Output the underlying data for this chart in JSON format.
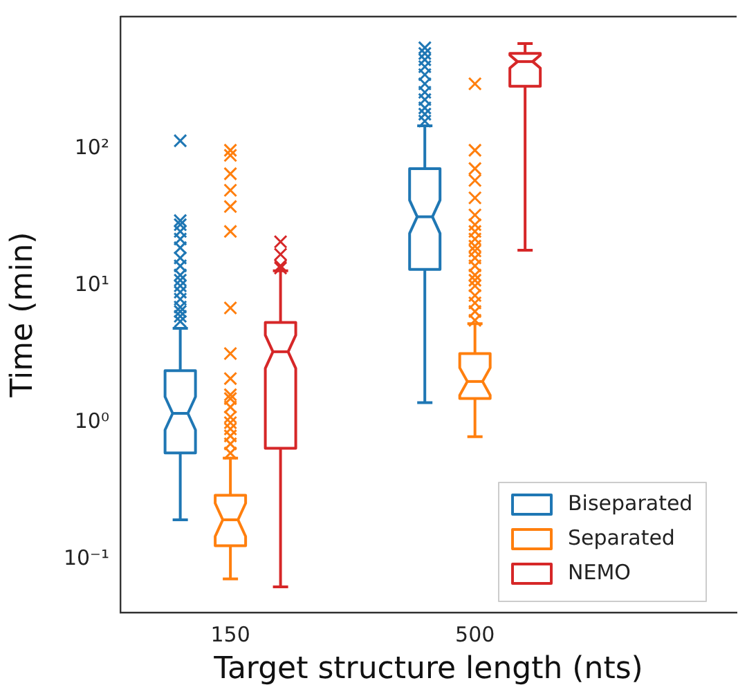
{
  "chart_data": {
    "type": "box",
    "xlabel": "Target structure length (nts)",
    "ylabel": "Time (min)",
    "categories": [
      "150",
      "500"
    ],
    "log": "y",
    "ylim": [
      0.041,
      930
    ],
    "yticks": [
      {
        "value": 0.1,
        "label": "10⁻¹"
      },
      {
        "value": 1,
        "label": "10⁰"
      },
      {
        "value": 10,
        "label": "10¹"
      },
      {
        "value": 100,
        "label": "10²"
      }
    ],
    "grid": false,
    "legend": "bottom right",
    "marker": "cross",
    "series": [
      {
        "name": "Biseparated",
        "color": "#1f77b4",
        "boxes": [
          {
            "low": 0.195,
            "q1": 0.6,
            "median": 1.17,
            "q3": 2.4,
            "high": 4.9,
            "outliers": [
              5.5,
              6,
              6.5,
              7,
              8,
              9,
              10,
              11,
              12,
              14,
              16,
              19,
              22,
              25,
              28,
              30,
              115
            ]
          },
          {
            "low": 1.4,
            "q1": 13.2,
            "median": 32,
            "q3": 72,
            "high": 148,
            "outliers": [
              160,
              180,
              200,
              230,
              260,
              300,
              350,
              400,
              450,
              500,
              550
            ]
          }
        ]
      },
      {
        "name": "Separated",
        "color": "#ff7f0e",
        "boxes": [
          {
            "low": 0.072,
            "q1": 0.126,
            "median": 0.195,
            "q3": 0.295,
            "high": 0.55,
            "outliers": [
              0.6,
              0.7,
              0.8,
              0.9,
              1,
              1.1,
              1.3,
              1.5,
              1.6,
              2.1,
              3.2,
              6.9,
              25,
              38,
              50,
              66,
              90,
              98
            ]
          },
          {
            "low": 0.79,
            "q1": 1.5,
            "median": 2,
            "q3": 3.2,
            "high": 5.3,
            "outliers": [
              5.6,
              6.5,
              7.5,
              8.5,
              10,
              11,
              12,
              14,
              16,
              18,
              19.5,
              22,
              25,
              28,
              33,
              44,
              59,
              72,
              98,
              300
            ]
          }
        ]
      },
      {
        "name": "NEMO",
        "color": "#d62728",
        "boxes": [
          {
            "low": 0.063,
            "q1": 0.65,
            "median": 3.3,
            "q3": 5.4,
            "high": 12.9,
            "outliers": [
              13.5,
              14,
              17,
              21
            ]
          },
          {
            "low": 18.2,
            "q1": 288,
            "median": 436,
            "q3": 500,
            "high": 590
          }
        ]
      }
    ]
  }
}
